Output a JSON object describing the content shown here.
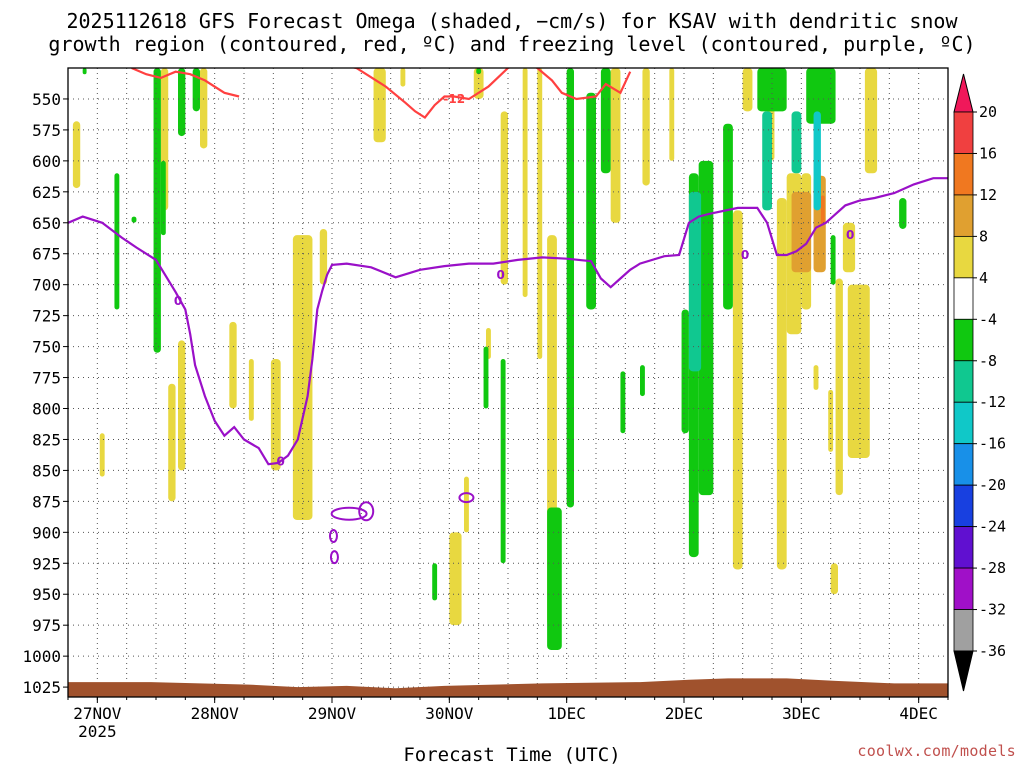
{
  "chart_data": {
    "type": "time-height contour",
    "title_line1": "2025112618 GFS Forecast Omega (shaded, −cm/s) for KSAV with dendritic snow",
    "title_line2": "growth region (contoured, red, ºC) and freezing level (contoured, purple, ºC)",
    "xlabel": "Forecast Time (UTC)",
    "x_ticks": [
      {
        "label": "27NOV",
        "sublabel": "2025",
        "t": 9
      },
      {
        "label": "28NOV",
        "t": 33
      },
      {
        "label": "29NOV",
        "t": 57
      },
      {
        "label": "30NOV",
        "t": 81
      },
      {
        "label": "1DEC",
        "t": 105
      },
      {
        "label": "2DEC",
        "t": 129
      },
      {
        "label": "3DEC",
        "t": 153
      },
      {
        "label": "4DEC",
        "t": 177
      }
    ],
    "xlim_hours": [
      3,
      183
    ],
    "y_levels_hpa": [
      550,
      575,
      600,
      625,
      650,
      675,
      700,
      725,
      750,
      775,
      800,
      825,
      850,
      875,
      900,
      925,
      950,
      975,
      1000,
      1025
    ],
    "ylim_hpa": [
      525,
      1033
    ],
    "colorbar_levels": [
      "20",
      "16",
      "12",
      "8",
      "4",
      "-4",
      "-8",
      "-12",
      "-16",
      "-20",
      "-24",
      "-28",
      "-32",
      "-36"
    ],
    "colorbar_colors": [
      "#f0185a",
      "#f04040",
      "#f07820",
      "#e0a030",
      "#e8d840",
      "#ffffff",
      "#10c810",
      "#10c890",
      "#10c8c8",
      "#1890e8",
      "#1840e0",
      "#6010d0",
      "#a010c8",
      "#a0a0a0",
      "#000000"
    ],
    "contour_labels": {
      "snow_growth": "-12",
      "freezing_level": "0"
    },
    "freezing_level": {
      "color": "#9a10c8",
      "t": [
        3,
        6,
        10,
        14,
        17,
        21,
        25,
        27,
        28,
        29,
        31,
        33,
        35,
        37,
        39,
        42,
        44,
        46,
        48,
        50,
        52,
        53,
        54,
        55,
        56,
        57,
        60,
        65,
        70,
        75,
        80,
        85,
        90,
        95,
        100,
        105,
        110,
        112,
        114,
        116,
        118,
        120,
        125,
        128,
        130,
        132,
        134,
        140,
        144,
        146,
        148,
        150,
        152,
        154,
        156,
        158,
        160,
        162,
        165,
        168,
        172,
        176,
        180,
        183
      ],
      "hpa": [
        650,
        645,
        650,
        662,
        670,
        680,
        706,
        720,
        740,
        765,
        790,
        810,
        822,
        815,
        825,
        832,
        845,
        844,
        838,
        825,
        790,
        760,
        720,
        705,
        692,
        684,
        683,
        686,
        694,
        688,
        685,
        683,
        683,
        680,
        678,
        679,
        681,
        695,
        702,
        695,
        688,
        683,
        677,
        676,
        650,
        645,
        643,
        638,
        638,
        650,
        676,
        676,
        673,
        667,
        654,
        650,
        643,
        636,
        632,
        630,
        626,
        619,
        614,
        614
      ]
    },
    "snow_growth_contour": {
      "color": "#ff4040",
      "segments": [
        {
          "t": [
            16,
            19,
            22,
            25,
            28,
            31,
            35,
            38
          ],
          "hpa": [
            525,
            530,
            533,
            528,
            530,
            535,
            545,
            548
          ]
        },
        {
          "t": [
            56,
            62,
            68,
            72,
            74,
            76,
            78,
            80,
            82,
            85,
            89,
            93,
            96,
            99,
            102,
            104,
            107,
            111,
            113,
            116,
            118
          ],
          "hpa": [
            520,
            525,
            540,
            553,
            560,
            565,
            555,
            548,
            548,
            550,
            540,
            525,
            520,
            525,
            535,
            545,
            550,
            548,
            538,
            545,
            528
          ]
        }
      ]
    },
    "shading": [
      {
        "color": "#e8d840",
        "t": [
          4.0,
          5.5
        ],
        "hpa": [
          568,
          622
        ]
      },
      {
        "color": "#e8d840",
        "t": [
          9.5,
          10.5
        ],
        "hpa": [
          820,
          855
        ]
      },
      {
        "color": "#e8d840",
        "t": [
          22.0,
          23.5
        ],
        "hpa": [
          525,
          640
        ]
      },
      {
        "color": "#e8d840",
        "t": [
          23.5,
          25.0
        ],
        "hpa": [
          780,
          875
        ]
      },
      {
        "color": "#e8d840",
        "t": [
          25.5,
          27.0
        ],
        "hpa": [
          745,
          850
        ]
      },
      {
        "color": "#e8d840",
        "t": [
          30.0,
          31.5
        ],
        "hpa": [
          525,
          590
        ]
      },
      {
        "color": "#e8d840",
        "t": [
          36.0,
          37.5
        ],
        "hpa": [
          730,
          800
        ]
      },
      {
        "color": "#e8d840",
        "t": [
          40.0,
          41.0
        ],
        "hpa": [
          760,
          810
        ]
      },
      {
        "color": "#e8d840",
        "t": [
          44.5,
          46.5
        ],
        "hpa": [
          760,
          850
        ]
      },
      {
        "color": "#e8d840",
        "t": [
          49.0,
          53.0
        ],
        "hpa": [
          660,
          890
        ]
      },
      {
        "color": "#e8d840",
        "t": [
          54.5,
          56.0
        ],
        "hpa": [
          655,
          700
        ]
      },
      {
        "color": "#e8d840",
        "t": [
          65.5,
          68.0
        ],
        "hpa": [
          525,
          585
        ]
      },
      {
        "color": "#e8d840",
        "t": [
          71.0,
          72.0
        ],
        "hpa": [
          525,
          540
        ]
      },
      {
        "color": "#e8d840",
        "t": [
          81.0,
          83.5
        ],
        "hpa": [
          900,
          975
        ]
      },
      {
        "color": "#e8d840",
        "t": [
          84.0,
          85.0
        ],
        "hpa": [
          855,
          900
        ]
      },
      {
        "color": "#e8d840",
        "t": [
          86.0,
          88.0
        ],
        "hpa": [
          525,
          550
        ]
      },
      {
        "color": "#e8d840",
        "t": [
          88.5,
          89.5
        ],
        "hpa": [
          735,
          760
        ]
      },
      {
        "color": "#e8d840",
        "t": [
          91.5,
          93.0
        ],
        "hpa": [
          560,
          700
        ]
      },
      {
        "color": "#e8d840",
        "t": [
          96.0,
          97.0
        ],
        "hpa": [
          525,
          710
        ]
      },
      {
        "color": "#e8d840",
        "t": [
          99.0,
          100.0
        ],
        "hpa": [
          525,
          760
        ]
      },
      {
        "color": "#e8d840",
        "t": [
          101.0,
          103.0
        ],
        "hpa": [
          660,
          975
        ]
      },
      {
        "color": "#e8d840",
        "t": [
          114.0,
          116.0
        ],
        "hpa": [
          525,
          650
        ]
      },
      {
        "color": "#e8d840",
        "t": [
          120.5,
          122.0
        ],
        "hpa": [
          525,
          620
        ]
      },
      {
        "color": "#e8d840",
        "t": [
          126.0,
          127.0
        ],
        "hpa": [
          525,
          600
        ]
      },
      {
        "color": "#e8d840",
        "t": [
          139.0,
          141.0
        ],
        "hpa": [
          640,
          930
        ]
      },
      {
        "color": "#e8d840",
        "t": [
          141.0,
          143.0
        ],
        "hpa": [
          525,
          560
        ]
      },
      {
        "color": "#e8d840",
        "t": [
          146.0,
          147.5
        ],
        "hpa": [
          525,
          600
        ]
      },
      {
        "color": "#e8d840",
        "t": [
          148.0,
          150.0
        ],
        "hpa": [
          630,
          930
        ]
      },
      {
        "color": "#e8d840",
        "t": [
          150.0,
          153.0
        ],
        "hpa": [
          610,
          740
        ]
      },
      {
        "color": "#e8d840",
        "t": [
          153.0,
          155.0
        ],
        "hpa": [
          610,
          720
        ]
      },
      {
        "color": "#e8d840",
        "t": [
          155.5,
          156.5
        ],
        "hpa": [
          765,
          785
        ]
      },
      {
        "color": "#e8d840",
        "t": [
          158.5,
          159.5
        ],
        "hpa": [
          785,
          835
        ]
      },
      {
        "color": "#e8d840",
        "t": [
          159.0,
          160.5
        ],
        "hpa": [
          925,
          950
        ]
      },
      {
        "color": "#e8d840",
        "t": [
          160.0,
          161.5
        ],
        "hpa": [
          695,
          870
        ]
      },
      {
        "color": "#e8d840",
        "t": [
          161.5,
          164.0
        ],
        "hpa": [
          650,
          690
        ]
      },
      {
        "color": "#e8d840",
        "t": [
          162.5,
          167.0
        ],
        "hpa": [
          700,
          840
        ]
      },
      {
        "color": "#e8d840",
        "t": [
          166.0,
          168.5
        ],
        "hpa": [
          525,
          610
        ]
      },
      {
        "color": "#e0a030",
        "t": [
          151.0,
          155.0
        ],
        "hpa": [
          625,
          690
        ]
      },
      {
        "color": "#e0a030",
        "t": [
          155.5,
          158.0
        ],
        "hpa": [
          612,
          690
        ]
      },
      {
        "color": "#f07820",
        "t": [
          157.0,
          157.8
        ],
        "hpa": [
          628,
          652
        ]
      },
      {
        "color": "#10c810",
        "t": [
          6.0,
          6.8
        ],
        "hpa": [
          525,
          530
        ]
      },
      {
        "color": "#10c810",
        "t": [
          12.5,
          13.5
        ],
        "hpa": [
          610,
          720
        ]
      },
      {
        "color": "#10c810",
        "t": [
          16.0,
          17.0
        ],
        "hpa": [
          645,
          650
        ]
      },
      {
        "color": "#10c810",
        "t": [
          20.5,
          22.0
        ],
        "hpa": [
          525,
          755
        ]
      },
      {
        "color": "#10c810",
        "t": [
          22.0,
          23.0
        ],
        "hpa": [
          600,
          660
        ]
      },
      {
        "color": "#10c810",
        "t": [
          25.5,
          27.0
        ],
        "hpa": [
          525,
          580
        ]
      },
      {
        "color": "#10c810",
        "t": [
          28.5,
          30.0
        ],
        "hpa": [
          525,
          560
        ]
      },
      {
        "color": "#10c810",
        "t": [
          77.5,
          78.5
        ],
        "hpa": [
          925,
          955
        ]
      },
      {
        "color": "#10c810",
        "t": [
          86.5,
          87.5
        ],
        "hpa": [
          525,
          530
        ]
      },
      {
        "color": "#10c810",
        "t": [
          88.0,
          89.0
        ],
        "hpa": [
          750,
          800
        ]
      },
      {
        "color": "#10c810",
        "t": [
          91.5,
          92.5
        ],
        "hpa": [
          760,
          925
        ]
      },
      {
        "color": "#10c810",
        "t": [
          101.0,
          104.0
        ],
        "hpa": [
          880,
          995
        ]
      },
      {
        "color": "#10c810",
        "t": [
          105.0,
          106.5
        ],
        "hpa": [
          525,
          880
        ]
      },
      {
        "color": "#10c810",
        "t": [
          109.0,
          111.0
        ],
        "hpa": [
          545,
          720
        ]
      },
      {
        "color": "#10c810",
        "t": [
          112.0,
          114.0
        ],
        "hpa": [
          525,
          610
        ]
      },
      {
        "color": "#10c810",
        "t": [
          116.0,
          117.0
        ],
        "hpa": [
          770,
          820
        ]
      },
      {
        "color": "#10c810",
        "t": [
          120.0,
          121.0
        ],
        "hpa": [
          765,
          790
        ]
      },
      {
        "color": "#10c810",
        "t": [
          128.5,
          130.0
        ],
        "hpa": [
          720,
          820
        ]
      },
      {
        "color": "#10c810",
        "t": [
          130.0,
          132.0
        ],
        "hpa": [
          610,
          920
        ]
      },
      {
        "color": "#10c810",
        "t": [
          132.0,
          135.0
        ],
        "hpa": [
          600,
          870
        ]
      },
      {
        "color": "#10c810",
        "t": [
          137.0,
          139.0
        ],
        "hpa": [
          570,
          720
        ]
      },
      {
        "color": "#10c810",
        "t": [
          144.0,
          150.0
        ],
        "hpa": [
          525,
          560
        ]
      },
      {
        "color": "#10c810",
        "t": [
          154.0,
          160.0
        ],
        "hpa": [
          525,
          570
        ]
      },
      {
        "color": "#10c810",
        "t": [
          159.0,
          160.0
        ],
        "hpa": [
          660,
          700
        ]
      },
      {
        "color": "#10c810",
        "t": [
          173.0,
          174.5
        ],
        "hpa": [
          630,
          655
        ]
      },
      {
        "color": "#10c890",
        "t": [
          130.0,
          132.5
        ],
        "hpa": [
          625,
          770
        ]
      },
      {
        "color": "#10c890",
        "t": [
          145.0,
          147.0
        ],
        "hpa": [
          560,
          640
        ]
      },
      {
        "color": "#10c890",
        "t": [
          151.0,
          153.0
        ],
        "hpa": [
          560,
          610
        ]
      },
      {
        "color": "#10c8c8",
        "t": [
          155.5,
          157.0
        ],
        "hpa": [
          560,
          640
        ]
      }
    ],
    "ground_color": "#a0522d"
  },
  "credit": "coolwx.com/models"
}
